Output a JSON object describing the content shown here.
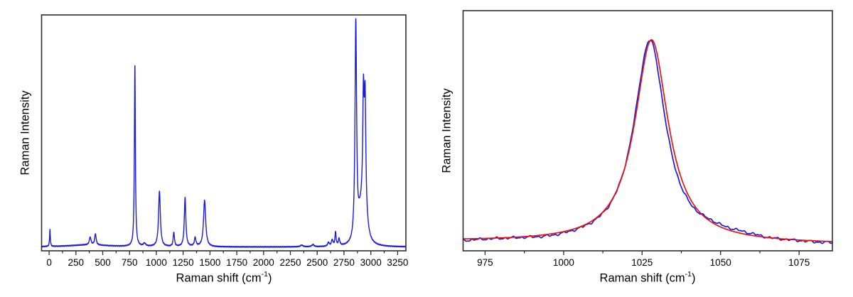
{
  "figure": {
    "background": "#ffffff",
    "description": "Two-panel Raman spectroscopy figure: full spectrum (left) and zoom on the ~1028 cm-1 band with Lorentzian fit (right)"
  },
  "colors": {
    "spectrum_blue": "#1b1be0",
    "fit_red": "#ee1111",
    "frame": "#2d2d2d",
    "tick_text": "#000000"
  },
  "chart_data": [
    {
      "id": "full-spectrum",
      "type": "line",
      "title": "",
      "xlabel": {
        "prefix": "Raman shift (cm",
        "sup": "-1",
        "suffix": ")"
      },
      "ylabel": "Raman Intensity",
      "xlim": [
        -70,
        3327
      ],
      "ylim_relative": [
        0,
        1
      ],
      "grid": false,
      "legend": "none",
      "x_major_ticks": [
        0,
        250,
        500,
        750,
        1000,
        1250,
        1500,
        1750,
        2000,
        2250,
        2500,
        2750,
        3000,
        3250
      ],
      "x_minor_ticks": [
        125,
        375,
        625,
        875,
        1125,
        1375,
        1625,
        1875,
        2125,
        2375,
        2625,
        2875,
        3125
      ],
      "y_tick_labels_visible": false,
      "series": [
        {
          "name": "raman-spectrum",
          "color_key": "spectrum_blue",
          "baseline": 0.016,
          "baseline_humps": [
            {
              "center": 370,
              "height": 0.009,
              "hwhm": 230
            }
          ],
          "noise": [
            {
              "amp": 0.0012,
              "freq": 1.7,
              "phase": 0.3
            },
            {
              "amp": 0.0009,
              "freq": 0.37,
              "phase": 1.1
            }
          ],
          "peaks": [
            {
              "center": 8,
              "height": 0.072,
              "hwhm": 4
            },
            {
              "center": 383,
              "height": 0.033,
              "hwhm": 9
            },
            {
              "center": 432,
              "height": 0.047,
              "hwhm": 8
            },
            {
              "center": 800,
              "height": 0.765,
              "hwhm": 5.5
            },
            {
              "center": 890,
              "height": 0.012,
              "hwhm": 14
            },
            {
              "center": 1029,
              "height": 0.235,
              "hwhm": 10
            },
            {
              "center": 1163,
              "height": 0.06,
              "hwhm": 7
            },
            {
              "center": 1268,
              "height": 0.208,
              "hwhm": 8.5
            },
            {
              "center": 1362,
              "height": 0.036,
              "hwhm": 9
            },
            {
              "center": 1450,
              "height": 0.197,
              "hwhm": 12
            },
            {
              "center": 2355,
              "height": 0.007,
              "hwhm": 14
            },
            {
              "center": 2460,
              "height": 0.009,
              "hwhm": 12
            },
            {
              "center": 2605,
              "height": 0.016,
              "hwhm": 9
            },
            {
              "center": 2640,
              "height": 0.026,
              "hwhm": 9
            },
            {
              "center": 2671,
              "height": 0.058,
              "hwhm": 6
            },
            {
              "center": 2704,
              "height": 0.029,
              "hwhm": 8
            },
            {
              "center": 2860,
              "height": 0.93,
              "hwhm": 9
            },
            {
              "center": 2895,
              "height": 0.065,
              "hwhm": 16
            },
            {
              "center": 2912,
              "height": 0.035,
              "hwhm": 11
            },
            {
              "center": 2931,
              "height": 0.38,
              "hwhm": 7
            },
            {
              "center": 2947,
              "height": 0.38,
              "hwhm": 7
            },
            {
              "center": 2938,
              "height": 0.28,
              "hwhm": 22
            }
          ]
        }
      ]
    },
    {
      "id": "band-zoom",
      "type": "line",
      "title": "",
      "xlabel": {
        "prefix": "Raman shift (cm",
        "sup": "-1",
        "suffix": ")"
      },
      "ylabel": "Raman Intensity",
      "xlim": [
        968,
        1085.6
      ],
      "ylim_relative": [
        0,
        1
      ],
      "grid": false,
      "legend": "none",
      "x_major_ticks": [
        975,
        1000,
        1025,
        1050,
        1075
      ],
      "x_minor_ticks": [
        987.5,
        1012.5,
        1037.5,
        1062.5
      ],
      "y_tick_labels_visible": false,
      "series": [
        {
          "name": "measured-spectrum",
          "color_key": "spectrum_blue",
          "baseline_start": 0.042,
          "baseline_end": 0.028,
          "peaks": [
            {
              "center": 1027.5,
              "height": 0.838,
              "hwhm": 6.1
            }
          ],
          "deviations": [
            {
              "center": 966,
              "height": -0.009,
              "hwhm": 6
            },
            {
              "center": 995,
              "height": -0.005,
              "hwhm": 6
            },
            {
              "center": 1021,
              "height": 0.008,
              "hwhm": 4
            },
            {
              "center": 1047,
              "height": 0.02,
              "hwhm": 6
            },
            {
              "center": 1055,
              "height": 0.009,
              "hwhm": 4
            },
            {
              "center": 1060,
              "height": 0.006,
              "hwhm": 3
            },
            {
              "center": 1082,
              "height": -0.004,
              "hwhm": 5
            }
          ],
          "noise": [
            {
              "amp": 0.003,
              "freq": 2.39,
              "phase": 0
            },
            {
              "amp": 0.0022,
              "freq": 1.13,
              "phase": 2.0
            },
            {
              "amp": 0.0014,
              "freq": 4.7,
              "phase": 0.5
            }
          ]
        },
        {
          "name": "lorentzian-fit",
          "color_key": "fit_red",
          "baseline_start": 0.04,
          "baseline_end": 0.028,
          "peaks": [
            {
              "center": 1028.0,
              "height": 0.845,
              "hwhm": 6.5
            }
          ]
        }
      ]
    }
  ]
}
